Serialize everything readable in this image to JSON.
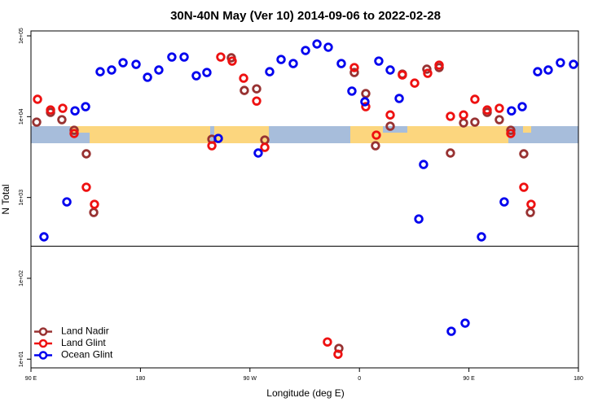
{
  "chart_data": {
    "type": "scatter",
    "title": "30N-40N May (Ver 10)   2014-09-06 to 2022-02-28",
    "xlabel": "Longitude (deg E)",
    "ylabel": "N Total",
    "xlim": [
      90,
      540
    ],
    "xticks": [
      {
        "value": 90,
        "label": "90 E"
      },
      {
        "value": 180,
        "label": "180"
      },
      {
        "value": 270,
        "label": "90 W"
      },
      {
        "value": 360,
        "label": "0"
      },
      {
        "value": 450,
        "label": "90 E"
      },
      {
        "value": 540,
        "label": "180"
      }
    ],
    "ylim": [
      7.8,
      115000
    ],
    "log_y": true,
    "yticks": [
      {
        "value": 100000,
        "label": "1e+05"
      },
      {
        "value": 10000,
        "label": "1e+04"
      },
      {
        "value": 1000,
        "label": "1e+03"
      },
      {
        "value": 100,
        "label": "1e+02"
      },
      {
        "value": 10,
        "label": "1e+01"
      }
    ],
    "hline": 250,
    "legend": "bottomleft",
    "series": [
      {
        "name": "Land Nadir",
        "color": "#983232",
        "x": [
          94.7,
          106.1,
          115.4,
          125.5,
          135.5,
          141.6,
          238.7,
          254.7,
          265.4,
          275.5,
          282.2,
          355.8,
          365.2,
          373.2,
          385.3,
          395.3,
          415.4,
          425.5,
          434.8,
          445.6,
          454.9,
          465,
          475,
          484.4,
          495.1,
          500.5,
          343.1
        ],
        "values": [
          8560,
          11300,
          9180,
          6790,
          3470,
          653,
          5260,
          53500,
          21100,
          22100,
          5140,
          35200,
          19300,
          4370,
          7620,
          33600,
          38700,
          40500,
          3550,
          8370,
          8560,
          11300,
          9180,
          6790,
          3470,
          653,
          13.6
        ]
      },
      {
        "name": "Land Glint",
        "color": "#ee1111",
        "x": [
          95.4,
          106.1,
          116.1,
          125.5,
          135.5,
          142.2,
          238.7,
          246,
          255.4,
          264.8,
          275.5,
          282.2,
          355.8,
          365.2,
          373.9,
          385.3,
          395.3,
          405.4,
          416.1,
          425.5,
          434.8,
          445.6,
          454.9,
          465,
          475,
          484.4,
          495.1,
          501.1,
          333.7,
          342.4
        ],
        "values": [
          16400,
          12100,
          12700,
          6190,
          1340,
          823,
          4370,
          54700,
          48700,
          29900,
          15600,
          4170,
          40500,
          13300,
          5910,
          10500,
          32800,
          26000,
          34400,
          43400,
          10100,
          10500,
          16400,
          12100,
          12700,
          6190,
          1340,
          823,
          16.3,
          11.5
        ]
      },
      {
        "name": "Ocean Glint",
        "color": "#0000ee",
        "x": [
          100.7,
          119.5,
          126.2,
          134.9,
          146.9,
          156.3,
          165.7,
          176.4,
          185.8,
          195.1,
          205.8,
          215.9,
          225.9,
          234.6,
          244,
          276.8,
          286.2,
          295.6,
          305.6,
          315.7,
          325.1,
          334.4,
          345.1,
          353.8,
          364.5,
          375.9,
          385.3,
          392.7,
          408.8,
          412.7,
          435.5,
          446.9,
          460.3,
          479,
          485,
          493.8,
          506.5,
          515.2,
          525.2,
          535.9
        ],
        "values": [
          326,
          882,
          11800,
          13300,
          36000,
          37800,
          46500,
          44400,
          30700,
          37800,
          54700,
          54700,
          32100,
          35200,
          5380,
          3550,
          36000,
          51000,
          45400,
          65900,
          79300,
          72300,
          45400,
          20700,
          15300,
          48700,
          37800,
          16800,
          542,
          2560,
          22.1,
          27.9,
          326,
          882,
          11800,
          13300,
          36000,
          37800,
          46500,
          44400
        ]
      }
    ]
  }
}
